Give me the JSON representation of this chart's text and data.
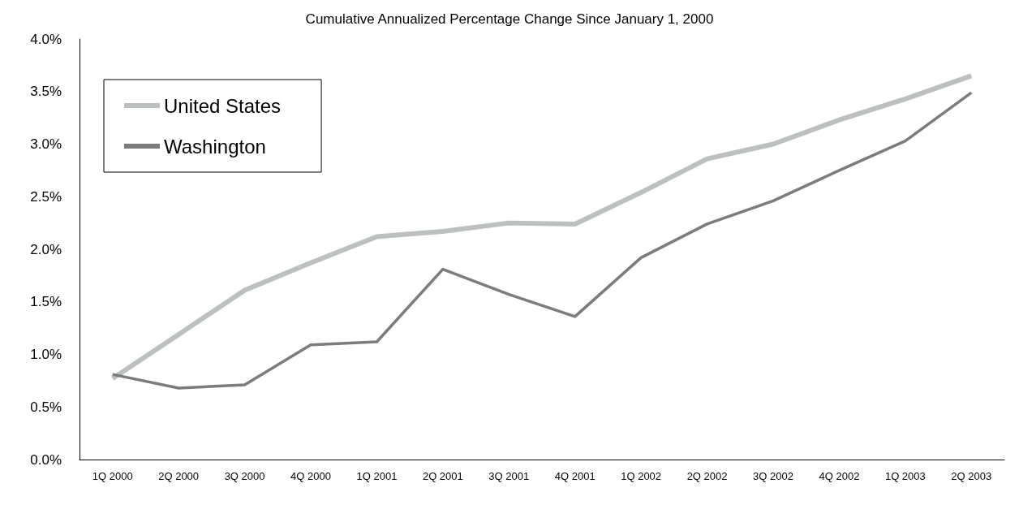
{
  "chart_data": {
    "type": "line",
    "title": "Cumulative Annualized Percentage Change Since January 1, 2000",
    "categories": [
      "1Q 2000",
      "2Q 2000",
      "3Q 2000",
      "4Q 2000",
      "1Q 2001",
      "2Q 2001",
      "3Q 2001",
      "4Q 2001",
      "1Q 2002",
      "2Q 2002",
      "3Q 2002",
      "4Q 2002",
      "1Q 2003",
      "2Q 2003"
    ],
    "series": [
      {
        "name": "United States",
        "color": "#bcc0c0",
        "values": [
          0.77,
          1.19,
          1.61,
          1.87,
          2.12,
          2.17,
          2.25,
          2.24,
          2.54,
          2.86,
          3.0,
          3.23,
          3.43,
          3.65
        ]
      },
      {
        "name": "Washington",
        "color": "#7a7c7e",
        "values": [
          0.81,
          0.68,
          0.71,
          1.09,
          1.12,
          1.81,
          1.57,
          1.36,
          1.92,
          2.24,
          2.46,
          2.75,
          3.03,
          3.49
        ]
      }
    ],
    "ylim": [
      0,
      4
    ],
    "yticks": [
      {
        "value": 0,
        "label": "0.0%"
      },
      {
        "value": 0.5,
        "label": "0.5%"
      },
      {
        "value": 1,
        "label": "1.0%"
      },
      {
        "value": 1.5,
        "label": "1.5%"
      },
      {
        "value": 2,
        "label": "2.0%"
      },
      {
        "value": 2.5,
        "label": "2.5%"
      },
      {
        "value": 3,
        "label": "3.0%"
      },
      {
        "value": 3.5,
        "label": "3.5%"
      },
      {
        "value": 4,
        "label": "4.0%"
      }
    ],
    "grid": false,
    "legend": "top left",
    "marker": "none",
    "line_style": "solid"
  }
}
